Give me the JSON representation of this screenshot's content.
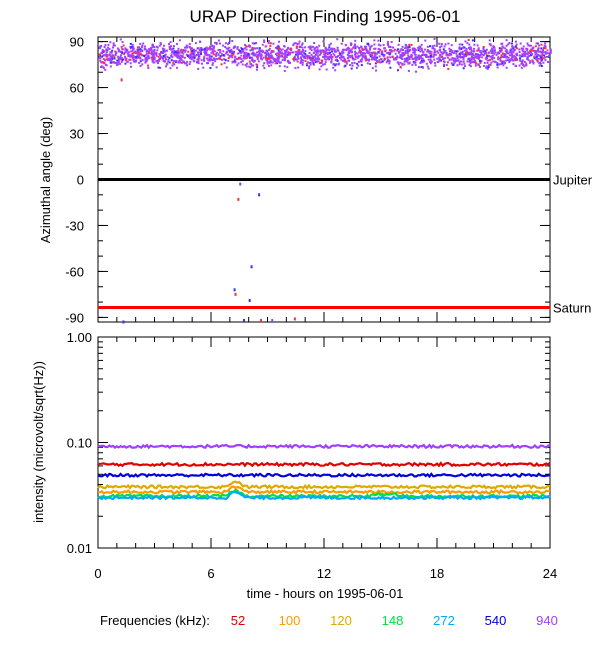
{
  "chart_data": [
    {
      "type": "scatter",
      "title": "URAP Direction Finding  1995-06-01",
      "xlabel": "",
      "ylabel": "Azimuthal angle (deg)",
      "xlim": [
        0,
        24
      ],
      "ylim": [
        -93,
        93
      ],
      "yticks": [
        "90",
        "60",
        "30",
        "0",
        "-30",
        "-60",
        "-90"
      ],
      "ytick_values": [
        90,
        60,
        30,
        0,
        -30,
        -60,
        -90
      ],
      "reference_lines": [
        {
          "name": "Jupiter",
          "value": 0,
          "color": "#000000"
        },
        {
          "name": "Saturn",
          "value": -83.5,
          "color": "#ff0000"
        }
      ],
      "band": {
        "x": [
          0,
          24
        ],
        "y_center": 82,
        "y_spread": 6,
        "colors": [
          "#a040ff",
          "#c040ff",
          "#3030ff",
          "#ff3030"
        ]
      },
      "outliers": [
        {
          "x": 1.2,
          "y": 66,
          "color": "#ff3030"
        },
        {
          "x": 7.4,
          "y": -12,
          "color": "#ff3030"
        },
        {
          "x": 7.5,
          "y": -2,
          "color": "#8040ff"
        },
        {
          "x": 8.5,
          "y": -9,
          "color": "#3030ff"
        },
        {
          "x": 7.2,
          "y": -71,
          "color": "#3030ff"
        },
        {
          "x": 7.25,
          "y": -74,
          "color": "#ff3030"
        },
        {
          "x": 8.1,
          "y": -56,
          "color": "#3030ff"
        },
        {
          "x": 8.0,
          "y": -78,
          "color": "#3030ff"
        },
        {
          "x": 7.7,
          "y": -91,
          "color": "#3030ff"
        },
        {
          "x": 8.6,
          "y": -91,
          "color": "#ff3030"
        },
        {
          "x": 9.2,
          "y": -91,
          "color": "#a040ff"
        },
        {
          "x": 10.4,
          "y": -90,
          "color": "#ff3030"
        },
        {
          "x": 1.3,
          "y": -92,
          "color": "#3030ff"
        }
      ]
    },
    {
      "type": "line",
      "xlabel": "time - hours on 1995-06-01",
      "ylabel": "intensity (microvolt/sqrt(Hz))",
      "yscale": "log",
      "ylim": [
        0.01,
        1.0
      ],
      "yticks": [
        "1.00",
        "0.10",
        "0.01"
      ],
      "ytick_values": [
        1.0,
        0.1,
        0.01
      ],
      "xticks": [
        "0",
        "6",
        "12",
        "18",
        "24"
      ],
      "xtick_values": [
        0,
        6,
        12,
        18,
        24
      ],
      "xlim": [
        0,
        24
      ],
      "series": [
        {
          "name": "52",
          "color": "#e00000",
          "level": 0.062
        },
        {
          "name": "100",
          "color": "#ff9900",
          "level": 0.034
        },
        {
          "name": "120",
          "color": "#ddaa00",
          "level": 0.038
        },
        {
          "name": "148",
          "color": "#00e040",
          "level": 0.031
        },
        {
          "name": "272",
          "color": "#00aaff",
          "level": 0.03
        },
        {
          "name": "540",
          "color": "#0000dd",
          "level": 0.049
        },
        {
          "name": "940",
          "color": "#a040ff",
          "level": 0.092
        }
      ]
    }
  ],
  "legend": {
    "label": "Frequencies (kHz):",
    "items": [
      {
        "text": "52",
        "color": "#e00000"
      },
      {
        "text": "100",
        "color": "#ff9900"
      },
      {
        "text": "120",
        "color": "#ddaa00"
      },
      {
        "text": "148",
        "color": "#00e040"
      },
      {
        "text": "272",
        "color": "#00aaff"
      },
      {
        "text": "540",
        "color": "#0000dd"
      },
      {
        "text": "940",
        "color": "#a040ff"
      }
    ]
  }
}
